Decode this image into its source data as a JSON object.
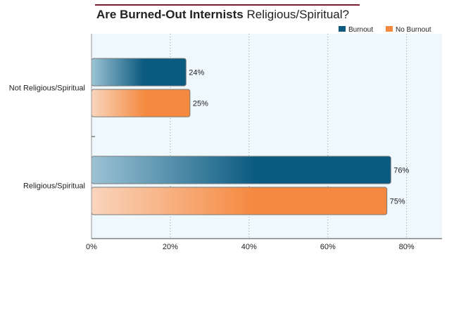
{
  "chart_data": {
    "type": "bar",
    "orientation": "horizontal",
    "title_bold": "Are Burned-Out Internists",
    "title_rest": " Religious/Spiritual?",
    "categories": [
      "Not Religious/Spiritual",
      "Religious/Spiritual"
    ],
    "series": [
      {
        "name": "Burnout",
        "values": [
          24,
          76
        ],
        "color": "#0b5a80",
        "color_light": "#9cc3d5"
      },
      {
        "name": "No Burnout",
        "values": [
          25,
          75
        ],
        "color": "#f5893f",
        "color_light": "#f9d5bd"
      }
    ],
    "value_labels": [
      [
        "24%",
        "76%"
      ],
      [
        "25%",
        "75%"
      ]
    ],
    "x_ticks": [
      0,
      20,
      40,
      60,
      80
    ],
    "x_tick_labels": [
      "0%",
      "20%",
      "40%",
      "60%",
      "80%"
    ],
    "xlim": [
      0,
      89
    ],
    "grid": true,
    "legend_position": "top-right",
    "title_rule_color": "#7a1f33",
    "plot_background": "#eef8fd"
  }
}
